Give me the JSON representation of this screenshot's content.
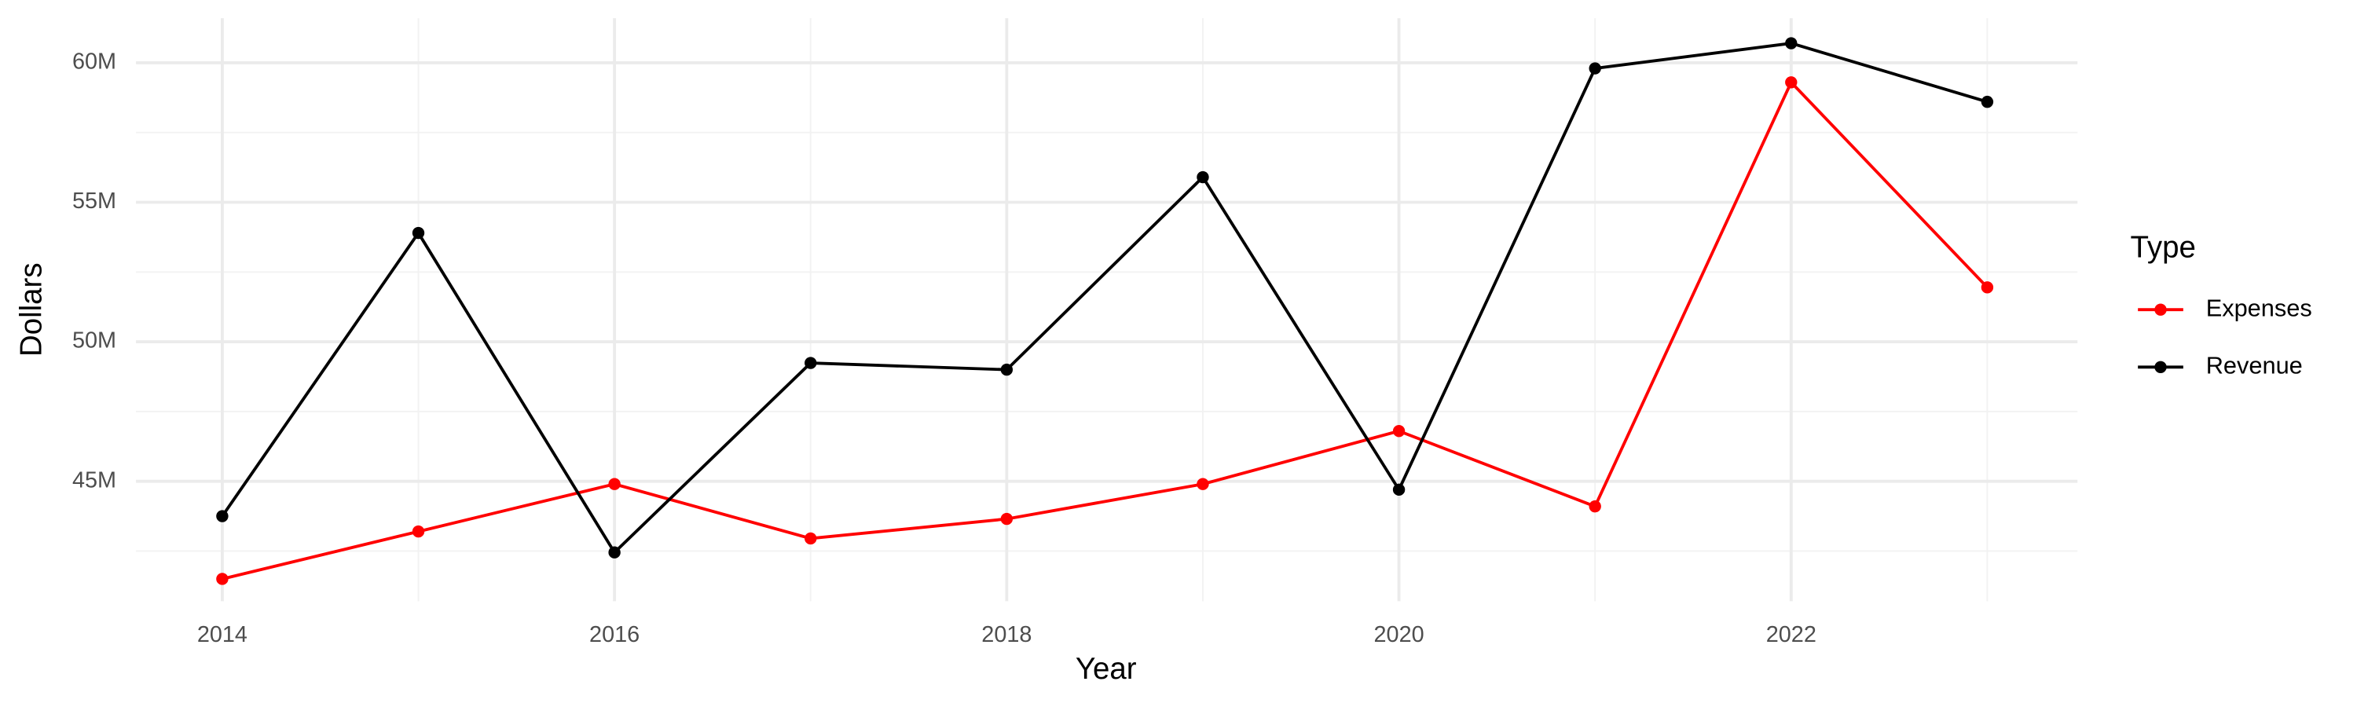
{
  "chart_data": {
    "type": "line",
    "x_label": "Year",
    "y_label": "Dollars",
    "x": [
      2014,
      2015,
      2016,
      2017,
      2018,
      2019,
      2020,
      2021,
      2022,
      2023
    ],
    "series": [
      {
        "name": "Expenses",
        "color": "#ff0000",
        "values": [
          41500000,
          43200000,
          44900000,
          42950000,
          43650000,
          44900000,
          46800000,
          44100000,
          59300000,
          51950000
        ]
      },
      {
        "name": "Revenue",
        "color": "#000000",
        "values": [
          43750000,
          53900000,
          42450000,
          49240000,
          49000000,
          55900000,
          44700000,
          59800000,
          60700000,
          58600000
        ]
      }
    ],
    "xlim": [
      2013.56,
      2023.46
    ],
    "ylim": [
      40700000,
      61600000
    ],
    "xticks": [
      2014,
      2016,
      2018,
      2020,
      2022
    ],
    "yticks": [
      {
        "value": 45000000,
        "label": "45M"
      },
      {
        "value": 50000000,
        "label": "50M"
      },
      {
        "value": 55000000,
        "label": "55M"
      },
      {
        "value": 60000000,
        "label": "60M"
      }
    ],
    "grid": true,
    "minor_grid": true,
    "legend_title": "Type",
    "legend_position": "right"
  }
}
